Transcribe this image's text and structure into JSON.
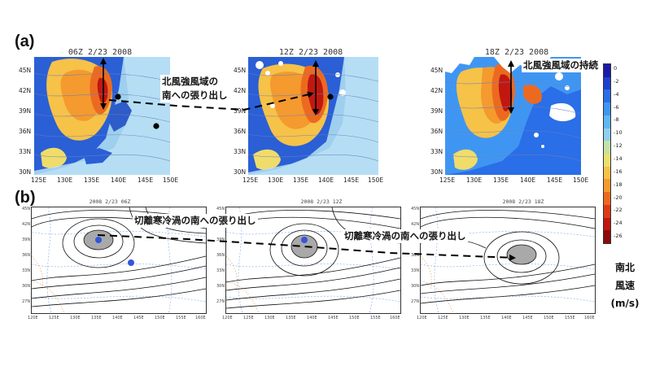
{
  "panels": {
    "a": {
      "label": "(a)"
    },
    "b": {
      "label": "(b)"
    }
  },
  "top_maps": [
    {
      "title": "06Z 2/23 2008"
    },
    {
      "title": "12Z 2/23 2008"
    },
    {
      "title": "18Z 2/23 2008"
    }
  ],
  "top_axes": {
    "lat_ticks": [
      "45N",
      "42N",
      "39N",
      "36N",
      "33N",
      "30N"
    ],
    "lon_ticks": [
      "125E",
      "130E",
      "135E",
      "140E",
      "145E",
      "150E"
    ]
  },
  "bottom_maps": [
    {
      "title": "2008 2/23 06Z"
    },
    {
      "title": "2008 2/23 12Z"
    },
    {
      "title": "2008 2/23 18Z"
    }
  ],
  "bottom_axes": {
    "lat_ticks": [
      "45N",
      "42N",
      "39N",
      "36N",
      "33N",
      "30N",
      "27N"
    ],
    "lon_ticks": [
      "120E",
      "125E",
      "130E",
      "135E",
      "140E",
      "145E",
      "150E",
      "155E",
      "160E"
    ]
  },
  "annotations": {
    "north_wind_south_1": "北風強風域の",
    "north_wind_south_2": "南への張り出し",
    "north_wind_persist": "北風強風域の持続",
    "cutoff_low_1": "切離寒冷渦の南への張り出し",
    "cutoff_low_2": "切離寒冷渦の南への張り出し"
  },
  "colorbar": {
    "ticks": [
      "0",
      "-2",
      "-4",
      "-6",
      "-8",
      "-10",
      "-12",
      "-14",
      "-16",
      "-18",
      "-20",
      "-22",
      "-24",
      "-26"
    ],
    "colors": [
      "#1a1aa8",
      "#1f3fd0",
      "#2a6ee8",
      "#3f96f2",
      "#62b6f4",
      "#8fd0f0",
      "#c4e2a8",
      "#e8e070",
      "#f6c248",
      "#f49a2e",
      "#ec6a20",
      "#dc3a18",
      "#c01810",
      "#8e0a0a"
    ],
    "unit_line1": "南北",
    "unit_line2": "風速",
    "unit_line3": "(m/s)"
  }
}
